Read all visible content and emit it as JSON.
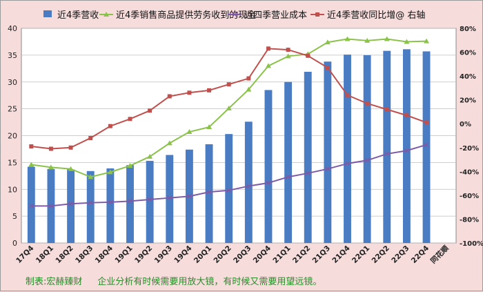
{
  "chart_data": {
    "type": "bar",
    "categories": [
      "17Q4",
      "18Q1",
      "18Q2",
      "18Q3",
      "18Q4",
      "19Q1",
      "19Q2",
      "19Q3",
      "19Q4",
      "20Q1",
      "20Q2",
      "20Q3",
      "20Q4",
      "21Q1",
      "21Q2",
      "21Q3",
      "21Q4",
      "22Q1",
      "22Q2",
      "22Q3",
      "22Q4"
    ],
    "extra_category_label": "同花顺",
    "left_axis": {
      "min": 0,
      "max": 40,
      "ticks": [
        0,
        5,
        10,
        15,
        20,
        25,
        30,
        35,
        40
      ]
    },
    "right_axis": {
      "min": -100,
      "max": 80,
      "ticks": [
        "-100%",
        "-80%",
        "-60%",
        "-40%",
        "-20%",
        "0%",
        "20%",
        "40%",
        "60%",
        "80%"
      ],
      "tick_values": [
        -100,
        -80,
        -60,
        -40,
        -20,
        0,
        20,
        40,
        60,
        80
      ]
    },
    "grid": true,
    "legend_position": "top",
    "series": [
      {
        "name": "近4季营收",
        "type": "bar",
        "axis": "left",
        "color": "#4a7cc4",
        "values": [
          14.2,
          13.8,
          13.7,
          13.4,
          13.9,
          14.5,
          15.3,
          16.4,
          17.4,
          18.4,
          20.3,
          22.6,
          28.5,
          30.0,
          31.9,
          33.8,
          35.1,
          35.0,
          35.8,
          36.1,
          35.7
        ]
      },
      {
        "name": "近4季销售商品提供劳务收到的现金",
        "type": "line",
        "axis": "left",
        "color": "#8bc34a",
        "marker": "triangle",
        "values": [
          14.6,
          14.1,
          13.8,
          12.3,
          13.2,
          14.4,
          16.1,
          18.6,
          20.7,
          21.6,
          25.1,
          28.6,
          33.0,
          34.8,
          35.2,
          37.4,
          38.0,
          37.7,
          38.0,
          37.5,
          37.6
        ]
      },
      {
        "name": "近四季营业成本",
        "type": "line",
        "axis": "left",
        "color": "#7c5aa6",
        "marker": "x",
        "values": [
          6.9,
          6.9,
          7.3,
          7.5,
          7.6,
          7.8,
          8.1,
          8.4,
          8.7,
          9.5,
          9.8,
          10.6,
          11.2,
          12.3,
          13.0,
          13.8,
          14.8,
          15.4,
          16.6,
          17.2,
          18.3
        ]
      },
      {
        "name": "近4季营收同比增@ 右轴",
        "type": "line",
        "axis": "right",
        "color": "#c0504d",
        "marker": "square",
        "values": [
          -19,
          -21,
          -20,
          -12,
          -2,
          4,
          11,
          23,
          26,
          28,
          33,
          38,
          63,
          62,
          57,
          47,
          24,
          17,
          12,
          7,
          1
        ]
      }
    ]
  },
  "footer": {
    "credit": "制表:宏赫臻财",
    "slogan": "企业分析有时候需要用放大镜，有时候又需要用望远镜。"
  }
}
